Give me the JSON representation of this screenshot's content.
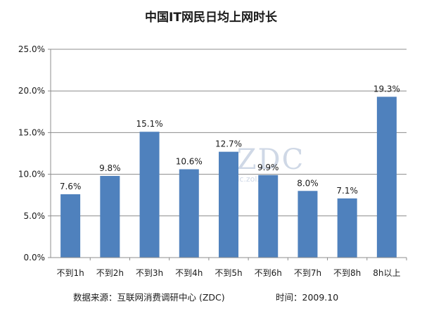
{
  "chart_data": {
    "type": "bar",
    "title": "中国IT网民日均上网时长",
    "categories": [
      "不到1h",
      "不到2h",
      "不到3h",
      "不到4h",
      "不到5h",
      "不到6h",
      "不到7h",
      "不到8h",
      "8h以上"
    ],
    "values": [
      7.6,
      9.8,
      15.1,
      10.6,
      12.7,
      9.9,
      8.0,
      7.1,
      19.3
    ],
    "data_labels": [
      "7.6%",
      "9.8%",
      "15.1%",
      "10.6%",
      "12.7%",
      "9.9%",
      "8.0%",
      "7.1%",
      "19.3%"
    ],
    "y_ticks": [
      "0.0%",
      "5.0%",
      "10.0%",
      "15.0%",
      "20.0%",
      "25.0%"
    ],
    "ylim": [
      0,
      25
    ],
    "xlabel": "",
    "ylabel": "",
    "grid": true,
    "bar_color": "#4f81bd"
  },
  "watermark": {
    "logo": "ZDC",
    "url": "zdc.zol.com"
  },
  "footer": {
    "source": "数据来源：互联网消费调研中心 (ZDC)",
    "time": "时间：2009.10"
  }
}
